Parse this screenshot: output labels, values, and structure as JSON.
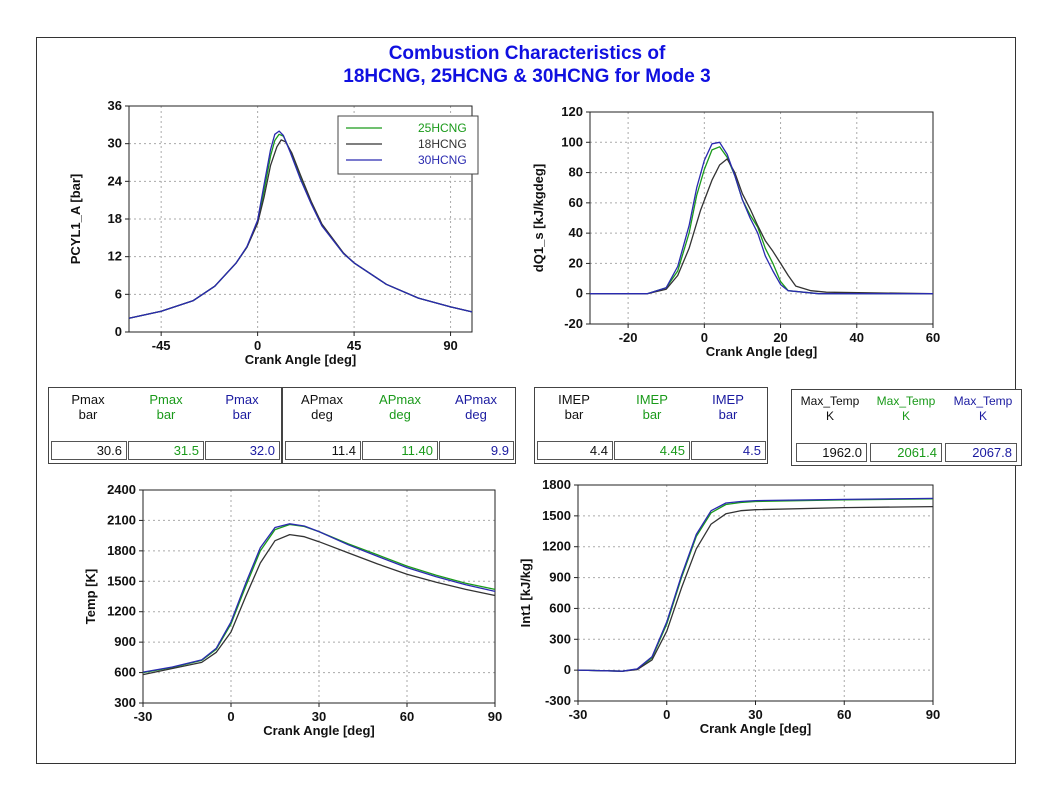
{
  "title": {
    "line1": "Combustion Characteristics of",
    "line2": "18HCNG, 25HCNG & 30HCNG for Mode 3"
  },
  "colors": {
    "25HCNG": "#1a9a1a",
    "18HCNG": "#333333",
    "30HCNG": "#2a2ab0"
  },
  "results": {
    "pmax": {
      "cols": [
        {
          "label": "Pmax",
          "unit": "bar",
          "value": "30.6",
          "color": "black"
        },
        {
          "label": "Pmax",
          "unit": "bar",
          "value": "31.5",
          "color": "green"
        },
        {
          "label": "Pmax",
          "unit": "bar",
          "value": "32.0",
          "color": "blue"
        }
      ]
    },
    "apmax": {
      "cols": [
        {
          "label": "APmax",
          "unit": "deg",
          "value": "11.4",
          "color": "black"
        },
        {
          "label": "APmax",
          "unit": "deg",
          "value": "11.40",
          "color": "green"
        },
        {
          "label": "APmax",
          "unit": "deg",
          "value": "9.9",
          "color": "blue"
        }
      ]
    },
    "imep": {
      "cols": [
        {
          "label": "IMEP",
          "unit": "bar",
          "value": "4.4",
          "color": "black"
        },
        {
          "label": "IMEP",
          "unit": "bar",
          "value": "4.45",
          "color": "green"
        },
        {
          "label": "IMEP",
          "unit": "bar",
          "value": "4.5",
          "color": "blue"
        }
      ]
    },
    "maxtemp": {
      "cols": [
        {
          "label": "Max_Temp",
          "unit": "K",
          "value": "1962.0",
          "color": "black"
        },
        {
          "label": "Max_Temp",
          "unit": "K",
          "value": "2061.4",
          "color": "green"
        },
        {
          "label": "Max_Temp",
          "unit": "K",
          "value": "2067.8",
          "color": "blue"
        }
      ]
    }
  },
  "chart_data": [
    {
      "type": "line",
      "xlabel": "Crank Angle [deg]",
      "ylabel": "PCYL1_A [bar]",
      "xlim": [
        -60,
        100
      ],
      "ylim": [
        0,
        36
      ],
      "xticks": [
        -45,
        0,
        45,
        90
      ],
      "yticks": [
        0,
        6,
        12,
        18,
        24,
        30,
        36
      ],
      "grid": true,
      "legend": "top-right",
      "series": [
        {
          "name": "25HCNG",
          "color": "#1a9a1a",
          "points": [
            [
              -60,
              2.2
            ],
            [
              -45,
              3.3
            ],
            [
              -30,
              5.0
            ],
            [
              -20,
              7.3
            ],
            [
              -10,
              11.0
            ],
            [
              -5,
              13.5
            ],
            [
              0,
              17.5
            ],
            [
              3,
              22.5
            ],
            [
              6,
              28.0
            ],
            [
              8,
              30.5
            ],
            [
              10,
              31.5
            ],
            [
              12,
              31.2
            ],
            [
              15,
              29.0
            ],
            [
              20,
              24.5
            ],
            [
              25,
              20.5
            ],
            [
              30,
              17.0
            ],
            [
              40,
              12.5
            ],
            [
              45,
              11.0
            ],
            [
              60,
              7.6
            ],
            [
              75,
              5.4
            ],
            [
              90,
              4.0
            ],
            [
              100,
              3.2
            ]
          ]
        },
        {
          "name": "18HCNG",
          "color": "#333333",
          "points": [
            [
              -60,
              2.2
            ],
            [
              -45,
              3.3
            ],
            [
              -30,
              5.0
            ],
            [
              -20,
              7.3
            ],
            [
              -10,
              11.0
            ],
            [
              -5,
              13.5
            ],
            [
              0,
              17.3
            ],
            [
              3,
              21.5
            ],
            [
              6,
              26.5
            ],
            [
              9,
              29.5
            ],
            [
              11,
              30.6
            ],
            [
              13,
              30.3
            ],
            [
              16,
              28.5
            ],
            [
              20,
              25.0
            ],
            [
              25,
              20.8
            ],
            [
              30,
              17.2
            ],
            [
              40,
              12.6
            ],
            [
              45,
              11.0
            ],
            [
              60,
              7.6
            ],
            [
              75,
              5.4
            ],
            [
              90,
              4.0
            ],
            [
              100,
              3.2
            ]
          ]
        },
        {
          "name": "30HCNG",
          "color": "#2a2ab0",
          "points": [
            [
              -60,
              2.2
            ],
            [
              -45,
              3.3
            ],
            [
              -30,
              5.0
            ],
            [
              -20,
              7.3
            ],
            [
              -10,
              11.0
            ],
            [
              -5,
              13.6
            ],
            [
              0,
              17.8
            ],
            [
              3,
              23.5
            ],
            [
              6,
              29.0
            ],
            [
              8,
              31.5
            ],
            [
              10,
              32.0
            ],
            [
              12,
              31.3
            ],
            [
              15,
              28.8
            ],
            [
              20,
              24.3
            ],
            [
              25,
              20.4
            ],
            [
              30,
              16.9
            ],
            [
              40,
              12.5
            ],
            [
              45,
              11.0
            ],
            [
              60,
              7.6
            ],
            [
              75,
              5.4
            ],
            [
              90,
              4.0
            ],
            [
              100,
              3.2
            ]
          ]
        }
      ]
    },
    {
      "type": "line",
      "xlabel": "Crank Angle [deg]",
      "ylabel": "dQ1_s [kJ/kgdeg]",
      "xlim": [
        -30,
        60
      ],
      "ylim": [
        -20,
        120
      ],
      "xticks": [
        -20,
        0,
        20,
        40,
        60
      ],
      "yticks": [
        -20,
        0,
        20,
        40,
        60,
        80,
        100,
        120
      ],
      "grid": true,
      "series": [
        {
          "name": "25HCNG",
          "color": "#1a9a1a",
          "points": [
            [
              -30,
              0
            ],
            [
              -15,
              0
            ],
            [
              -10,
              4
            ],
            [
              -7,
              15
            ],
            [
              -4,
              40
            ],
            [
              -2,
              65
            ],
            [
              0,
              82
            ],
            [
              2,
              95
            ],
            [
              4,
              97
            ],
            [
              6,
              90
            ],
            [
              8,
              78
            ],
            [
              10,
              62
            ],
            [
              12,
              52
            ],
            [
              14,
              44
            ],
            [
              16,
              30
            ],
            [
              18,
              20
            ],
            [
              20,
              8
            ],
            [
              22,
              2
            ],
            [
              26,
              1
            ],
            [
              30,
              0
            ],
            [
              60,
              0
            ]
          ]
        },
        {
          "name": "18HCNG",
          "color": "#333333",
          "points": [
            [
              -30,
              0
            ],
            [
              -15,
              0
            ],
            [
              -10,
              3
            ],
            [
              -7,
              12
            ],
            [
              -4,
              30
            ],
            [
              -1,
              55
            ],
            [
              2,
              75
            ],
            [
              4,
              85
            ],
            [
              6,
              89
            ],
            [
              8,
              80
            ],
            [
              10,
              66
            ],
            [
              12,
              56
            ],
            [
              14,
              45
            ],
            [
              16,
              35
            ],
            [
              18,
              28
            ],
            [
              20,
              20
            ],
            [
              22,
              12
            ],
            [
              24,
              5
            ],
            [
              28,
              2
            ],
            [
              32,
              1
            ],
            [
              60,
              0
            ]
          ]
        },
        {
          "name": "30HCNG",
          "color": "#2a2ab0",
          "points": [
            [
              -30,
              0
            ],
            [
              -15,
              0
            ],
            [
              -10,
              4
            ],
            [
              -7,
              18
            ],
            [
              -4,
              45
            ],
            [
              -2,
              70
            ],
            [
              0,
              88
            ],
            [
              2,
              99
            ],
            [
              4,
              100
            ],
            [
              6,
              92
            ],
            [
              8,
              78
            ],
            [
              10,
              62
            ],
            [
              12,
              50
            ],
            [
              14,
              40
            ],
            [
              16,
              25
            ],
            [
              18,
              15
            ],
            [
              20,
              6
            ],
            [
              22,
              2
            ],
            [
              26,
              1
            ],
            [
              30,
              0
            ],
            [
              60,
              0
            ]
          ]
        }
      ]
    },
    {
      "type": "line",
      "xlabel": "Crank Angle [deg]",
      "ylabel": "Temp [K]",
      "xlim": [
        -30,
        90
      ],
      "ylim": [
        300,
        2400
      ],
      "xticks": [
        -30,
        0,
        30,
        60,
        90
      ],
      "yticks": [
        300,
        600,
        900,
        1200,
        1500,
        1800,
        2100,
        2400
      ],
      "grid": true,
      "series": [
        {
          "name": "25HCNG",
          "color": "#1a9a1a",
          "points": [
            [
              -30,
              600
            ],
            [
              -20,
              650
            ],
            [
              -10,
              720
            ],
            [
              -5,
              830
            ],
            [
              0,
              1080
            ],
            [
              5,
              1450
            ],
            [
              10,
              1800
            ],
            [
              15,
              2010
            ],
            [
              20,
              2060
            ],
            [
              25,
              2040
            ],
            [
              30,
              1990
            ],
            [
              40,
              1870
            ],
            [
              50,
              1760
            ],
            [
              60,
              1650
            ],
            [
              70,
              1560
            ],
            [
              80,
              1480
            ],
            [
              90,
              1420
            ]
          ]
        },
        {
          "name": "18HCNG",
          "color": "#333333",
          "points": [
            [
              -30,
              580
            ],
            [
              -20,
              640
            ],
            [
              -10,
              700
            ],
            [
              -5,
              800
            ],
            [
              0,
              1000
            ],
            [
              5,
              1350
            ],
            [
              10,
              1680
            ],
            [
              15,
              1900
            ],
            [
              20,
              1960
            ],
            [
              25,
              1940
            ],
            [
              30,
              1890
            ],
            [
              40,
              1780
            ],
            [
              50,
              1670
            ],
            [
              60,
              1570
            ],
            [
              70,
              1490
            ],
            [
              80,
              1420
            ],
            [
              90,
              1360
            ]
          ]
        },
        {
          "name": "30HCNG",
          "color": "#2a2ab0",
          "points": [
            [
              -30,
              605
            ],
            [
              -20,
              655
            ],
            [
              -10,
              725
            ],
            [
              -5,
              840
            ],
            [
              0,
              1100
            ],
            [
              5,
              1480
            ],
            [
              10,
              1830
            ],
            [
              15,
              2030
            ],
            [
              20,
              2067
            ],
            [
              25,
              2045
            ],
            [
              30,
              1990
            ],
            [
              40,
              1860
            ],
            [
              50,
              1745
            ],
            [
              60,
              1635
            ],
            [
              70,
              1545
            ],
            [
              80,
              1465
            ],
            [
              90,
              1400
            ]
          ]
        }
      ]
    },
    {
      "type": "line",
      "xlabel": "Crank Angle [deg]",
      "ylabel": "Int1 [kJ/kg]",
      "xlim": [
        -30,
        90
      ],
      "ylim": [
        -300,
        1800
      ],
      "xticks": [
        -30,
        0,
        30,
        60,
        90
      ],
      "yticks": [
        -300,
        0,
        300,
        600,
        900,
        1200,
        1500,
        1800
      ],
      "grid": true,
      "series": [
        {
          "name": "25HCNG",
          "color": "#1a9a1a",
          "points": [
            [
              -30,
              0
            ],
            [
              -15,
              -10
            ],
            [
              -10,
              10
            ],
            [
              -5,
              120
            ],
            [
              0,
              450
            ],
            [
              5,
              900
            ],
            [
              10,
              1300
            ],
            [
              15,
              1530
            ],
            [
              20,
              1610
            ],
            [
              25,
              1630
            ],
            [
              30,
              1640
            ],
            [
              60,
              1655
            ],
            [
              90,
              1665
            ]
          ]
        },
        {
          "name": "18HCNG",
          "color": "#333333",
          "points": [
            [
              -30,
              0
            ],
            [
              -15,
              -10
            ],
            [
              -10,
              5
            ],
            [
              -5,
              100
            ],
            [
              0,
              380
            ],
            [
              5,
              800
            ],
            [
              10,
              1180
            ],
            [
              15,
              1420
            ],
            [
              20,
              1520
            ],
            [
              25,
              1550
            ],
            [
              30,
              1560
            ],
            [
              60,
              1580
            ],
            [
              90,
              1590
            ]
          ]
        },
        {
          "name": "30HCNG",
          "color": "#2a2ab0",
          "points": [
            [
              -30,
              0
            ],
            [
              -15,
              -10
            ],
            [
              -10,
              12
            ],
            [
              -5,
              130
            ],
            [
              0,
              470
            ],
            [
              5,
              920
            ],
            [
              10,
              1320
            ],
            [
              15,
              1550
            ],
            [
              20,
              1625
            ],
            [
              25,
              1640
            ],
            [
              30,
              1648
            ],
            [
              60,
              1660
            ],
            [
              90,
              1670
            ]
          ]
        }
      ]
    }
  ]
}
